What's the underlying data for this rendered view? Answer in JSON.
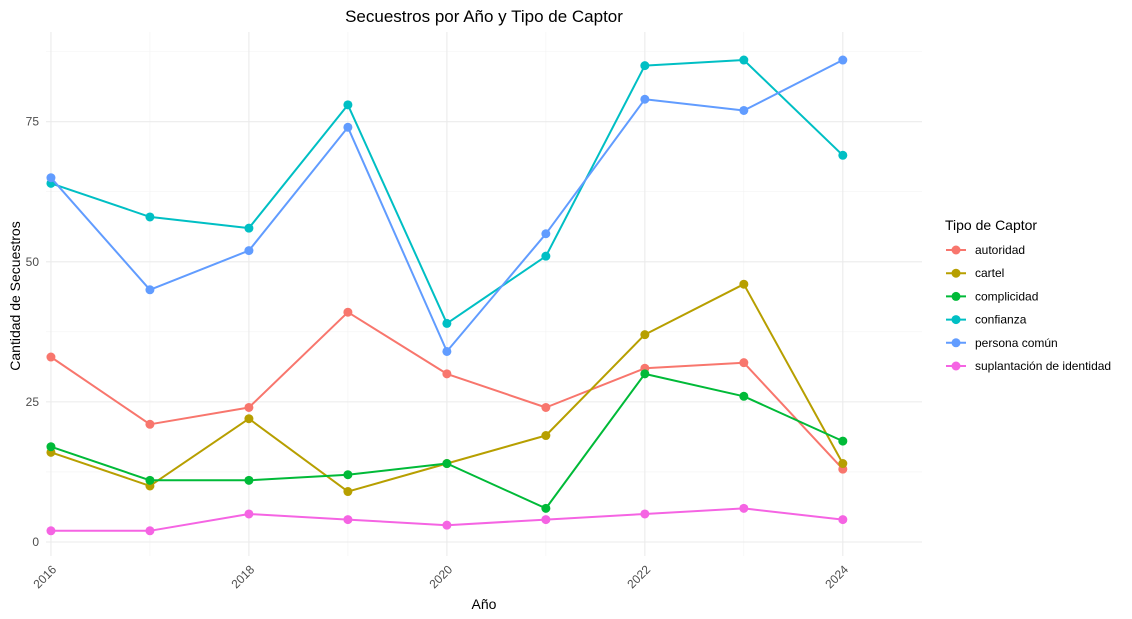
{
  "chart_data": {
    "type": "line",
    "title": "Secuestros por Año y Tipo de Captor",
    "xlabel": "Año",
    "ylabel": "Cantidad de Secuestros",
    "x": [
      2016,
      2017,
      2018,
      2019,
      2020,
      2021,
      2022,
      2023,
      2024
    ],
    "x_ticks": [
      "2016",
      "2018",
      "2020",
      "2022",
      "2024"
    ],
    "y_ticks": [
      "0",
      "25",
      "50",
      "75"
    ],
    "xlim": [
      2015.95,
      2024.8
    ],
    "ylim": [
      -2.5,
      91
    ],
    "grid": true,
    "legend": {
      "title": "Tipo de Captor",
      "position": "right"
    },
    "series": [
      {
        "name": "autoridad",
        "color": "#F8766D",
        "values": [
          33,
          21,
          24,
          41,
          30,
          24,
          31,
          32,
          13
        ]
      },
      {
        "name": "cartel",
        "color": "#B79F00",
        "values": [
          16,
          10,
          22,
          9,
          14,
          19,
          37,
          46,
          14
        ]
      },
      {
        "name": "complicidad",
        "color": "#00BA38",
        "values": [
          17,
          11,
          11,
          12,
          14,
          6,
          30,
          26,
          18
        ]
      },
      {
        "name": "confianza",
        "color": "#00BFC4",
        "values": [
          64,
          58,
          56,
          78,
          39,
          51,
          85,
          86,
          69
        ]
      },
      {
        "name": "persona común",
        "color": "#619CFF",
        "values": [
          65,
          45,
          52,
          74,
          34,
          55,
          79,
          77,
          86
        ]
      },
      {
        "name": "suplantación de identidad",
        "color": "#F564E3",
        "values": [
          2,
          2,
          5,
          4,
          3,
          4,
          5,
          6,
          4
        ]
      }
    ]
  }
}
